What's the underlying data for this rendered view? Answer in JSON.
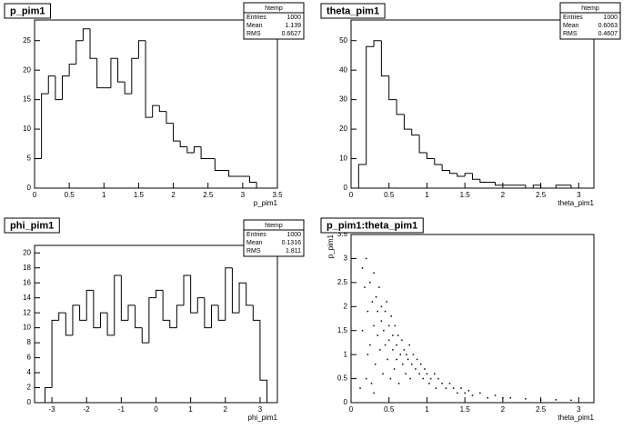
{
  "chart_data": [
    {
      "type": "histogram",
      "title": "p_pim1",
      "x_label": "p_pim1",
      "bins": [
        0,
        0.1,
        0.2,
        0.3,
        0.4,
        0.5,
        0.6,
        0.7,
        0.8,
        0.9,
        1.0,
        1.1,
        1.2,
        1.3,
        1.4,
        1.5,
        1.6,
        1.7,
        1.8,
        1.9,
        2.0,
        2.1,
        2.2,
        2.3,
        2.4,
        2.5,
        2.6,
        2.7,
        2.8,
        2.9,
        3.0,
        3.1,
        3.2,
        3.3,
        3.4,
        3.5
      ],
      "values": [
        5,
        16,
        19,
        15,
        19,
        21,
        25,
        27,
        22,
        17,
        17,
        22,
        18,
        16,
        22,
        25,
        12,
        14,
        13,
        11,
        8,
        7,
        6,
        7,
        5,
        5,
        3,
        3,
        2,
        2,
        2,
        1,
        0,
        0,
        0
      ],
      "xlim": [
        0,
        3.5
      ],
      "ylim": [
        0,
        28.5
      ],
      "xticks": [
        0,
        0.5,
        1,
        1.5,
        2,
        2.5,
        3,
        3.5
      ],
      "yticks": [
        0,
        5,
        10,
        15,
        20,
        25
      ],
      "stats": {
        "name": "htemp",
        "labels": [
          "Entries",
          "Mean",
          "RMS"
        ],
        "values": [
          1000,
          1.139,
          0.6627
        ]
      }
    },
    {
      "type": "histogram",
      "title": "theta_pim1",
      "x_label": "theta_pim1",
      "bins": [
        0,
        0.1,
        0.2,
        0.3,
        0.4,
        0.5,
        0.6,
        0.7,
        0.8,
        0.9,
        1.0,
        1.1,
        1.2,
        1.3,
        1.4,
        1.5,
        1.6,
        1.7,
        1.8,
        1.9,
        2.0,
        2.1,
        2.2,
        2.3,
        2.4,
        2.5,
        2.6,
        2.7,
        2.8,
        2.9,
        3.0
      ],
      "values": [
        0,
        8,
        48,
        50,
        38,
        30,
        25,
        20,
        18,
        12,
        10,
        8,
        6,
        5,
        4,
        5,
        3,
        2,
        2,
        1,
        1,
        1,
        1,
        0,
        1,
        0,
        0,
        1,
        1,
        0
      ],
      "xlim": [
        0,
        3.2
      ],
      "ylim": [
        0,
        57
      ],
      "xticks": [
        0,
        0.5,
        1,
        1.5,
        2,
        2.5,
        3
      ],
      "yticks": [
        0,
        10,
        20,
        30,
        40,
        50
      ],
      "stats": {
        "name": "htemp",
        "labels": [
          "Entries",
          "Mean",
          "RMS"
        ],
        "values": [
          1000,
          0.6063,
          0.4607
        ]
      }
    },
    {
      "type": "histogram",
      "title": "phi_pim1",
      "x_label": "phi_pim1",
      "bins": [
        -3.2,
        -3.0,
        -2.8,
        -2.6,
        -2.4,
        -2.2,
        -2.0,
        -1.8,
        -1.6,
        -1.4,
        -1.2,
        -1.0,
        -0.8,
        -0.6,
        -0.4,
        -0.2,
        0,
        0.2,
        0.4,
        0.6,
        0.8,
        1.0,
        1.2,
        1.4,
        1.6,
        1.8,
        2.0,
        2.2,
        2.4,
        2.6,
        2.8,
        3.0,
        3.2
      ],
      "values": [
        2,
        11,
        12,
        9,
        13,
        11,
        15,
        10,
        12,
        9,
        17,
        11,
        13,
        10,
        8,
        14,
        15,
        11,
        10,
        13,
        17,
        12,
        14,
        10,
        13,
        11,
        18,
        12,
        16,
        13,
        11,
        3
      ],
      "xlim": [
        -3.5,
        3.5
      ],
      "ylim": [
        0,
        21
      ],
      "xticks": [
        -3,
        -2,
        -1,
        0,
        1,
        2,
        3
      ],
      "yticks": [
        0,
        2,
        4,
        6,
        8,
        10,
        12,
        14,
        16,
        18,
        20
      ],
      "stats": {
        "name": "htemp",
        "labels": [
          "Entries",
          "Mean",
          "RMS"
        ],
        "values": [
          1000,
          0.1316,
          1.811
        ]
      }
    },
    {
      "type": "scatter",
      "title": "p_pim1:theta_pim1",
      "x_label": "theta_pim1",
      "y_label": "p_pim1",
      "x": [
        0.15,
        0.18,
        0.2,
        0.22,
        0.25,
        0.25,
        0.28,
        0.3,
        0.3,
        0.32,
        0.33,
        0.35,
        0.35,
        0.37,
        0.38,
        0.4,
        0.4,
        0.42,
        0.43,
        0.45,
        0.45,
        0.47,
        0.48,
        0.5,
        0.5,
        0.52,
        0.53,
        0.55,
        0.55,
        0.57,
        0.58,
        0.6,
        0.6,
        0.62,
        0.63,
        0.65,
        0.67,
        0.68,
        0.7,
        0.72,
        0.73,
        0.75,
        0.77,
        0.78,
        0.8,
        0.82,
        0.85,
        0.87,
        0.9,
        0.92,
        0.95,
        0.97,
        1.0,
        1.03,
        1.05,
        1.1,
        1.12,
        1.15,
        1.2,
        1.25,
        1.3,
        1.35,
        1.4,
        1.45,
        1.5,
        1.55,
        1.6,
        1.7,
        1.8,
        1.9,
        2.0,
        2.1,
        2.3,
        2.5,
        2.7,
        2.9,
        0.12,
        0.2,
        0.3,
        0.15,
        0.22,
        0.27
      ],
      "y": [
        2.8,
        2.4,
        3.0,
        1.9,
        2.5,
        1.2,
        2.1,
        2.7,
        1.6,
        0.8,
        2.2,
        1.9,
        1.4,
        2.4,
        1.1,
        1.7,
        2.0,
        0.6,
        1.5,
        1.9,
        1.2,
        2.1,
        0.9,
        1.6,
        1.3,
        0.5,
        1.8,
        1.1,
        1.4,
        0.7,
        1.6,
        1.2,
        0.9,
        1.4,
        0.4,
        1.0,
        1.3,
        0.8,
        1.1,
        0.6,
        1.0,
        0.9,
        1.2,
        0.5,
        0.8,
        1.0,
        0.7,
        0.9,
        0.6,
        0.8,
        0.5,
        0.7,
        0.6,
        0.4,
        0.5,
        0.6,
        0.3,
        0.5,
        0.4,
        0.3,
        0.4,
        0.3,
        0.2,
        0.3,
        0.2,
        0.25,
        0.15,
        0.2,
        0.1,
        0.15,
        0.1,
        0.1,
        0.08,
        0.05,
        0.06,
        0.05,
        0.3,
        0.5,
        0.2,
        1.5,
        1.0,
        0.4
      ],
      "xlim": [
        0,
        3.2
      ],
      "ylim": [
        0,
        3.5
      ],
      "xticks": [
        0,
        0.5,
        1,
        1.5,
        2,
        2.5,
        3
      ],
      "yticks": [
        0,
        0.5,
        1,
        1.5,
        2,
        2.5,
        3,
        3.5
      ]
    }
  ]
}
